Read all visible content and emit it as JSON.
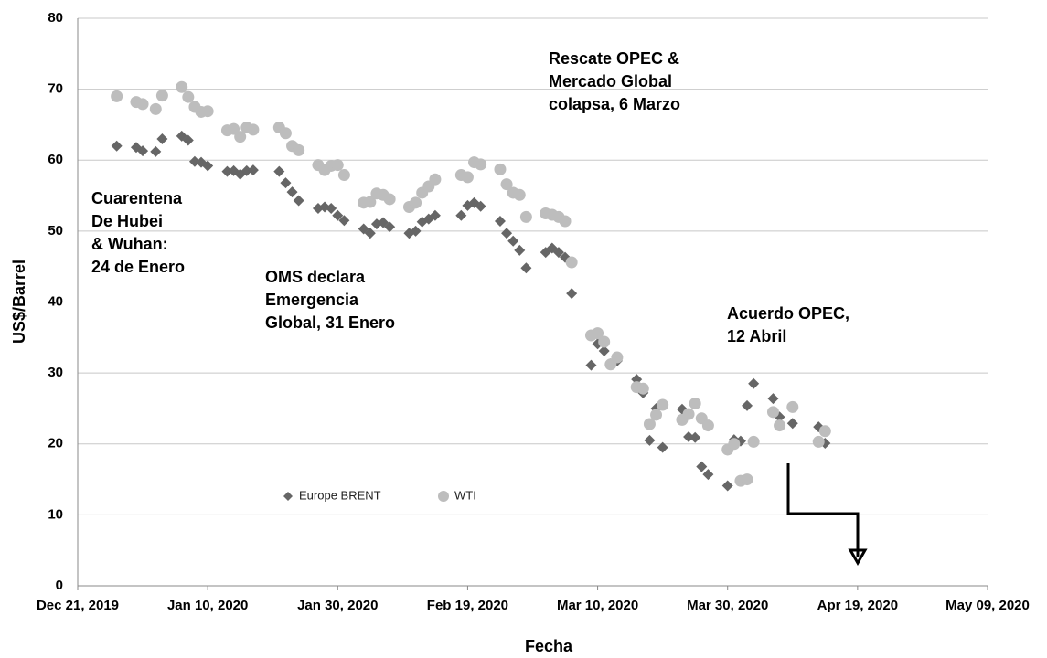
{
  "chart_data": {
    "type": "scatter",
    "x_label": "Fecha",
    "y_label": "US$/Barrel",
    "xlim": [
      "2019-12-21",
      "2020-05-09"
    ],
    "xticks": [
      {
        "value": "2019-12-21",
        "label": "Dec 21, 2019"
      },
      {
        "value": "2020-01-10",
        "label": "Jan 10, 2020"
      },
      {
        "value": "2020-01-30",
        "label": "Jan 30, 2020"
      },
      {
        "value": "2020-02-19",
        "label": "Feb 19, 2020"
      },
      {
        "value": "2020-03-10",
        "label": "Mar 10, 2020"
      },
      {
        "value": "2020-03-30",
        "label": "Mar 30, 2020"
      },
      {
        "value": "2020-04-19",
        "label": "Apr 19, 2020"
      },
      {
        "value": "2020-05-09",
        "label": "May 09, 2020"
      }
    ],
    "ylim": [
      0,
      80
    ],
    "yticks": [
      0,
      10,
      20,
      30,
      40,
      50,
      60,
      70,
      80
    ],
    "grid": true,
    "series": [
      {
        "name": "Europe BRENT",
        "color": "#666666",
        "marker": "diamond",
        "x": [
          "2019-12-27",
          "2019-12-30",
          "2019-12-31",
          "2020-01-02",
          "2020-01-03",
          "2020-01-06",
          "2020-01-07",
          "2020-01-08",
          "2020-01-09",
          "2020-01-10",
          "2020-01-13",
          "2020-01-14",
          "2020-01-15",
          "2020-01-16",
          "2020-01-17",
          "2020-01-21",
          "2020-01-22",
          "2020-01-23",
          "2020-01-24",
          "2020-01-27",
          "2020-01-28",
          "2020-01-29",
          "2020-01-30",
          "2020-01-31",
          "2020-02-03",
          "2020-02-04",
          "2020-02-05",
          "2020-02-06",
          "2020-02-07",
          "2020-02-10",
          "2020-02-11",
          "2020-02-12",
          "2020-02-13",
          "2020-02-14",
          "2020-02-18",
          "2020-02-19",
          "2020-02-20",
          "2020-02-21",
          "2020-02-24",
          "2020-02-25",
          "2020-02-26",
          "2020-02-27",
          "2020-02-28",
          "2020-03-02",
          "2020-03-03",
          "2020-03-04",
          "2020-03-05",
          "2020-03-06",
          "2020-03-09",
          "2020-03-10",
          "2020-03-11",
          "2020-03-12",
          "2020-03-13",
          "2020-03-16",
          "2020-03-17",
          "2020-03-18",
          "2020-03-19",
          "2020-03-20",
          "2020-03-23",
          "2020-03-24",
          "2020-03-25",
          "2020-03-26",
          "2020-03-27",
          "2020-03-30",
          "2020-03-31",
          "2020-04-01",
          "2020-04-02",
          "2020-04-03",
          "2020-04-06",
          "2020-04-07",
          "2020-04-09",
          "2020-04-13",
          "2020-04-14"
        ],
        "values": [
          62.0,
          61.8,
          61.3,
          61.2,
          63.0,
          63.4,
          62.8,
          59.8,
          59.7,
          59.2,
          58.4,
          58.5,
          58.0,
          58.5,
          58.6,
          58.4,
          56.8,
          55.5,
          54.3,
          53.2,
          53.4,
          53.2,
          52.2,
          51.5,
          50.3,
          49.7,
          51.0,
          51.2,
          50.6,
          49.7,
          50.0,
          51.3,
          51.7,
          52.2,
          52.2,
          53.6,
          54.0,
          53.5,
          51.4,
          49.7,
          48.6,
          47.3,
          44.8,
          47.0,
          47.6,
          47.0,
          46.3,
          41.2,
          31.1,
          34.1,
          33.1,
          31.3,
          31.7,
          29.1,
          27.2,
          20.5,
          25.0,
          19.5,
          24.9,
          21.0,
          20.9,
          16.8,
          15.7,
          14.1,
          20.6,
          20.4,
          25.4,
          28.5,
          26.4,
          23.8,
          22.9,
          22.4,
          20.1
        ]
      },
      {
        "name": "WTI",
        "color": "#bdbdbd",
        "marker": "circle",
        "x": [
          "2019-12-27",
          "2019-12-30",
          "2019-12-31",
          "2020-01-02",
          "2020-01-03",
          "2020-01-06",
          "2020-01-07",
          "2020-01-08",
          "2020-01-09",
          "2020-01-10",
          "2020-01-13",
          "2020-01-14",
          "2020-01-15",
          "2020-01-16",
          "2020-01-17",
          "2020-01-21",
          "2020-01-22",
          "2020-01-23",
          "2020-01-24",
          "2020-01-27",
          "2020-01-28",
          "2020-01-29",
          "2020-01-30",
          "2020-01-31",
          "2020-02-03",
          "2020-02-04",
          "2020-02-05",
          "2020-02-06",
          "2020-02-07",
          "2020-02-10",
          "2020-02-11",
          "2020-02-12",
          "2020-02-13",
          "2020-02-14",
          "2020-02-18",
          "2020-02-19",
          "2020-02-20",
          "2020-02-21",
          "2020-02-24",
          "2020-02-25",
          "2020-02-26",
          "2020-02-27",
          "2020-02-28",
          "2020-03-02",
          "2020-03-03",
          "2020-03-04",
          "2020-03-05",
          "2020-03-06",
          "2020-03-09",
          "2020-03-10",
          "2020-03-11",
          "2020-03-12",
          "2020-03-13",
          "2020-03-16",
          "2020-03-17",
          "2020-03-18",
          "2020-03-19",
          "2020-03-20",
          "2020-03-23",
          "2020-03-24",
          "2020-03-25",
          "2020-03-26",
          "2020-03-27",
          "2020-03-30",
          "2020-03-31",
          "2020-04-01",
          "2020-04-02",
          "2020-04-03",
          "2020-04-06",
          "2020-04-07",
          "2020-04-09",
          "2020-04-13",
          "2020-04-14"
        ],
        "values": [
          69.0,
          68.2,
          67.9,
          67.2,
          69.1,
          70.3,
          68.9,
          67.5,
          66.8,
          66.9,
          64.2,
          64.4,
          63.3,
          64.6,
          64.3,
          64.6,
          63.8,
          62.0,
          61.4,
          59.3,
          58.6,
          59.2,
          59.3,
          57.9,
          54.0,
          54.1,
          55.3,
          55.1,
          54.5,
          53.4,
          54.0,
          55.4,
          56.3,
          57.3,
          57.9,
          57.6,
          59.7,
          59.4,
          58.7,
          56.6,
          55.4,
          55.1,
          52.0,
          52.5,
          52.3,
          52.0,
          51.4,
          45.6,
          35.3,
          35.6,
          34.4,
          31.2,
          32.2,
          28.0,
          27.8,
          22.8,
          24.1,
          25.5,
          23.4,
          24.2,
          25.7,
          23.6,
          22.6,
          19.2,
          20.0,
          14.8,
          15.0,
          20.3,
          24.5,
          22.6,
          25.2,
          20.3,
          21.8
        ]
      }
    ],
    "annotations": [
      {
        "lines": [
          "Cuarentena",
          "De Hubei",
          "& Wuhan:",
          "24 de Enero"
        ]
      },
      {
        "lines": [
          "OMS declara",
          "Emergencia",
          "Global, 31 Enero"
        ]
      },
      {
        "lines": [
          "Rescate OPEC &",
          "Mercado Global",
          "colapsa, 6 Marzo"
        ]
      },
      {
        "lines": [
          "Acuerdo OPEC,",
          " 12 Abril"
        ]
      }
    ]
  }
}
